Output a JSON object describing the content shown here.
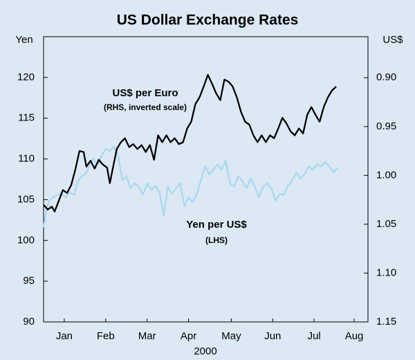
{
  "chart_data": {
    "type": "line",
    "title": "US Dollar Exchange Rates",
    "y_unit_label": "Yen",
    "y2_unit_label": "US$",
    "xlabel": "2000",
    "xlim": [
      0,
      235
    ],
    "xticks": [
      {
        "value": 15,
        "label": "Jan"
      },
      {
        "value": 45,
        "label": "Feb"
      },
      {
        "value": 75,
        "label": "Mar"
      },
      {
        "value": 105,
        "label": "Apr"
      },
      {
        "value": 136,
        "label": "May"
      },
      {
        "value": 166,
        "label": "Jun"
      },
      {
        "value": 196,
        "label": "Jul"
      },
      {
        "value": 225,
        "label": "Aug"
      }
    ],
    "ylim": [
      90,
      125
    ],
    "yticks": [
      90,
      95,
      100,
      105,
      110,
      115,
      120
    ],
    "y2lim": [
      1.15,
      0.858
    ],
    "y2ticks": [
      1.15,
      {
        "value": 1.1,
        "label": "1.10"
      },
      1.05,
      {
        "value": 1.0,
        "label": "1.00"
      },
      0.95,
      {
        "value": 0.9,
        "label": "0.90"
      }
    ],
    "grid": false,
    "annotations": [
      "US$ per Euro",
      "(RHS, inverted scale)",
      "Yen per US$",
      "(LHS)"
    ],
    "series": [
      {
        "name": "Yen per US$",
        "color": "#a8d8f2",
        "axis": "y",
        "x": [
          0,
          2,
          4,
          7,
          10,
          13,
          16,
          19,
          22,
          25,
          28,
          31,
          33,
          36,
          39,
          42,
          45,
          48,
          51,
          54,
          57,
          60,
          63,
          66,
          69,
          72,
          75,
          78,
          81,
          84,
          87,
          90,
          93,
          96,
          99,
          102,
          105,
          108,
          111,
          114,
          117,
          120,
          123,
          126,
          129,
          132,
          135,
          138,
          141,
          144,
          147,
          150,
          153,
          156,
          159,
          162,
          165,
          168,
          171,
          174,
          177,
          180,
          183,
          186,
          189,
          192,
          195,
          198,
          201,
          204,
          207,
          210,
          213
        ],
        "values": [
          101.6,
          103.6,
          104.9,
          105.3,
          105.6,
          105.7,
          105.3,
          105.9,
          105.6,
          107.3,
          107.9,
          108.3,
          109.1,
          110.0,
          109.3,
          110.4,
          111.2,
          111.0,
          111.5,
          110.4,
          107.4,
          107.9,
          106.4,
          107.0,
          106.6,
          105.6,
          107.0,
          106.2,
          106.7,
          105.9,
          103.0,
          106.6,
          105.7,
          106.4,
          107.0,
          104.2,
          105.3,
          104.7,
          105.7,
          107.4,
          109.1,
          108.1,
          108.7,
          109.3,
          108.7,
          109.8,
          107.0,
          106.6,
          107.9,
          107.3,
          106.4,
          107.6,
          106.6,
          105.3,
          106.6,
          107.0,
          106.4,
          104.9,
          105.7,
          105.6,
          106.7,
          107.3,
          108.3,
          107.6,
          108.1,
          109.1,
          108.7,
          109.3,
          109.1,
          109.6,
          109.1,
          108.4,
          108.9
        ]
      },
      {
        "name": "US$ per Euro",
        "color": "#000000",
        "axis": "y2",
        "x": [
          0,
          3,
          6,
          8,
          11,
          14,
          17,
          20,
          23,
          26,
          29,
          31,
          34,
          37,
          40,
          43,
          46,
          48,
          50,
          53,
          56,
          59,
          62,
          65,
          68,
          71,
          74,
          77,
          80,
          83,
          86,
          89,
          92,
          95,
          98,
          101,
          104,
          107,
          110,
          113,
          116,
          119,
          122,
          125,
          128,
          131,
          134,
          137,
          140,
          143,
          146,
          149,
          152,
          155,
          158,
          161,
          164,
          167,
          170,
          173,
          176,
          179,
          182,
          185,
          188,
          191,
          194,
          197,
          200,
          203,
          206,
          209,
          212
        ],
        "values": [
          1.03,
          1.035,
          1.032,
          1.037,
          1.026,
          1.015,
          1.018,
          1.01,
          0.994,
          0.975,
          0.976,
          0.991,
          0.985,
          0.993,
          0.984,
          0.989,
          0.992,
          1.008,
          0.994,
          0.973,
          0.966,
          0.962,
          0.971,
          0.968,
          0.973,
          0.969,
          0.976,
          0.969,
          0.984,
          0.959,
          0.966,
          0.959,
          0.966,
          0.962,
          0.968,
          0.966,
          0.952,
          0.945,
          0.927,
          0.92,
          0.909,
          0.897,
          0.906,
          0.916,
          0.923,
          0.902,
          0.904,
          0.909,
          0.92,
          0.935,
          0.945,
          0.948,
          0.959,
          0.966,
          0.959,
          0.966,
          0.959,
          0.962,
          0.952,
          0.941,
          0.947,
          0.955,
          0.959,
          0.952,
          0.957,
          0.938,
          0.93,
          0.938,
          0.945,
          0.93,
          0.92,
          0.913,
          0.909
        ]
      }
    ]
  }
}
